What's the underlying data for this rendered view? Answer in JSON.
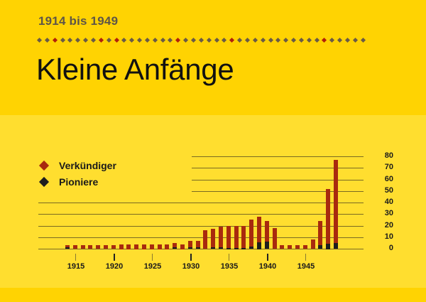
{
  "header": {
    "subtitle": "1914 bis 1949",
    "title": "Kleine Anfänge"
  },
  "colors": {
    "background_top": "#FFD302",
    "background_chart": "#FFDE2F",
    "verkuendiger": "#A82A0E",
    "pioniere": "#1E1E1E",
    "dot_gray": "#6B5A45",
    "dot_red": "#B2200A"
  },
  "divider": {
    "count": 43,
    "red_indices": [
      2,
      8,
      10,
      18,
      25,
      37
    ]
  },
  "legend": {
    "items": [
      {
        "label": "Verkündiger",
        "icon": "diamond-red",
        "color": "#A82A0E"
      },
      {
        "label": "Pioniere",
        "icon": "diamond-black",
        "color": "#1E1E1E"
      }
    ]
  },
  "chart_data": {
    "type": "bar",
    "stacked": true,
    "title": "Kleine Anfänge",
    "subtitle": "1914 bis 1949",
    "xlabel": "",
    "ylabel": "",
    "ylim": [
      0,
      80
    ],
    "yticks": [
      0,
      10,
      20,
      30,
      40,
      50,
      60,
      70,
      80
    ],
    "xticks": [
      "1915",
      "1920",
      "1925",
      "1930",
      "1935",
      "1940",
      "1945"
    ],
    "grid": true,
    "legend_position": "top-left",
    "categories": [
      1914,
      1915,
      1916,
      1917,
      1918,
      1919,
      1920,
      1921,
      1922,
      1923,
      1924,
      1925,
      1926,
      1927,
      1928,
      1929,
      1930,
      1931,
      1932,
      1933,
      1934,
      1935,
      1936,
      1937,
      1938,
      1939,
      1940,
      1941,
      1942,
      1943,
      1944,
      1945,
      1946,
      1947,
      1948,
      1949
    ],
    "series": [
      {
        "name": "Verkündiger",
        "color": "#A82A0E",
        "values": [
          3,
          3,
          3,
          3,
          3,
          3,
          3,
          4,
          4,
          4,
          4,
          4,
          4,
          4,
          5,
          4,
          7,
          7,
          16,
          17,
          19,
          20,
          20,
          20,
          25,
          28,
          24,
          18,
          3,
          3,
          3,
          3,
          8,
          24,
          52,
          77
        ]
      },
      {
        "name": "Pioniere",
        "color": "#1E1E1E",
        "values": [
          1,
          0,
          0,
          0,
          0,
          0,
          0,
          0,
          0,
          0,
          0,
          0,
          0,
          0,
          1,
          0,
          1,
          1,
          0,
          1,
          1,
          1,
          1,
          1,
          2,
          6,
          6,
          0,
          0,
          0,
          0,
          0,
          0,
          3,
          5,
          5
        ]
      }
    ]
  }
}
